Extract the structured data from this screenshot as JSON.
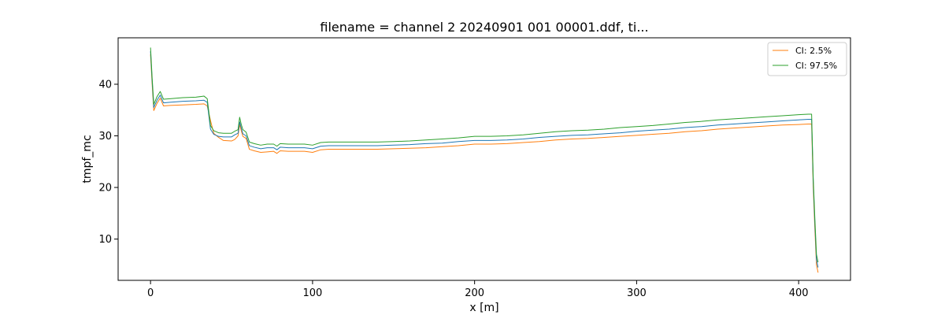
{
  "chart_data": {
    "type": "line",
    "title": "filename = channel 2 20240901 001 00001.ddf, ti...",
    "xlabel": "x [m]",
    "ylabel": "tmpf_mc",
    "xlim": [
      -20,
      432
    ],
    "ylim": [
      2,
      49
    ],
    "xticks": [
      0,
      100,
      200,
      300,
      400
    ],
    "yticks": [
      10,
      20,
      30,
      40
    ],
    "grid": false,
    "legend_position": "top-right",
    "series": [
      {
        "key": "ci_2_5",
        "name": "CI: 2.5%",
        "color": "#ff7f0e",
        "in_legend": true,
        "points": [
          [
            0,
            45.8
          ],
          [
            1,
            40
          ],
          [
            2,
            34.9
          ],
          [
            4,
            36.3
          ],
          [
            6,
            37.3
          ],
          [
            8,
            35.8
          ],
          [
            12,
            35.9
          ],
          [
            20,
            36
          ],
          [
            28,
            36.1
          ],
          [
            33,
            36.2
          ],
          [
            35,
            35.8
          ],
          [
            37,
            33
          ],
          [
            39,
            30.5
          ],
          [
            42,
            29.7
          ],
          [
            45,
            29.1
          ],
          [
            50,
            29
          ],
          [
            52,
            29.3
          ],
          [
            54,
            30
          ],
          [
            55,
            32.2
          ],
          [
            56,
            31
          ],
          [
            57,
            29.9
          ],
          [
            59,
            29.5
          ],
          [
            61,
            27.4
          ],
          [
            64,
            27.1
          ],
          [
            68,
            26.8
          ],
          [
            72,
            26.9
          ],
          [
            76,
            27
          ],
          [
            78,
            26.6
          ],
          [
            80,
            27.1
          ],
          [
            85,
            27
          ],
          [
            90,
            27
          ],
          [
            95,
            27
          ],
          [
            100,
            26.8
          ],
          [
            105,
            27.3
          ],
          [
            110,
            27.4
          ],
          [
            120,
            27.4
          ],
          [
            130,
            27.4
          ],
          [
            140,
            27.4
          ],
          [
            150,
            27.5
          ],
          [
            160,
            27.6
          ],
          [
            170,
            27.7
          ],
          [
            180,
            27.9
          ],
          [
            190,
            28.1
          ],
          [
            200,
            28.4
          ],
          [
            210,
            28.4
          ],
          [
            220,
            28.5
          ],
          [
            230,
            28.7
          ],
          [
            240,
            28.9
          ],
          [
            250,
            29.2
          ],
          [
            260,
            29.4
          ],
          [
            270,
            29.5
          ],
          [
            280,
            29.7
          ],
          [
            290,
            29.9
          ],
          [
            300,
            30.1
          ],
          [
            310,
            30.3
          ],
          [
            320,
            30.5
          ],
          [
            330,
            30.8
          ],
          [
            340,
            31
          ],
          [
            350,
            31.3
          ],
          [
            360,
            31.5
          ],
          [
            370,
            31.7
          ],
          [
            380,
            31.9
          ],
          [
            390,
            32.1
          ],
          [
            400,
            32.2
          ],
          [
            406,
            32.3
          ],
          [
            408,
            32.3
          ],
          [
            409,
            20
          ],
          [
            410,
            12
          ],
          [
            411,
            5
          ],
          [
            412,
            3.5
          ]
        ]
      },
      {
        "key": "mean",
        "name": "",
        "color": "#1f77b4",
        "in_legend": false,
        "points": [
          [
            0,
            46.4
          ],
          [
            1,
            40.6
          ],
          [
            2,
            35.5
          ],
          [
            4,
            36.9
          ],
          [
            6,
            37.9
          ],
          [
            8,
            36.4
          ],
          [
            12,
            36.5
          ],
          [
            20,
            36.7
          ],
          [
            28,
            36.8
          ],
          [
            33,
            36.9
          ],
          [
            35,
            36.5
          ],
          [
            37,
            31.3
          ],
          [
            39,
            30.3
          ],
          [
            42,
            29.9
          ],
          [
            45,
            29.8
          ],
          [
            50,
            29.8
          ],
          [
            52,
            30.2
          ],
          [
            54,
            30.5
          ],
          [
            55,
            32.7
          ],
          [
            56,
            31.5
          ],
          [
            57,
            30.4
          ],
          [
            59,
            30
          ],
          [
            61,
            28.1
          ],
          [
            64,
            27.8
          ],
          [
            68,
            27.5
          ],
          [
            72,
            27.7
          ],
          [
            76,
            27.7
          ],
          [
            78,
            27.3
          ],
          [
            80,
            27.8
          ],
          [
            85,
            27.7
          ],
          [
            90,
            27.7
          ],
          [
            95,
            27.7
          ],
          [
            100,
            27.5
          ],
          [
            105,
            28
          ],
          [
            110,
            28.1
          ],
          [
            120,
            28.1
          ],
          [
            130,
            28.1
          ],
          [
            140,
            28.1
          ],
          [
            150,
            28.2
          ],
          [
            160,
            28.3
          ],
          [
            170,
            28.5
          ],
          [
            180,
            28.6
          ],
          [
            190,
            28.9
          ],
          [
            200,
            29.1
          ],
          [
            210,
            29.1
          ],
          [
            220,
            29.2
          ],
          [
            230,
            29.4
          ],
          [
            240,
            29.7
          ],
          [
            250,
            29.9
          ],
          [
            260,
            30.1
          ],
          [
            270,
            30.2
          ],
          [
            280,
            30.4
          ],
          [
            290,
            30.6
          ],
          [
            300,
            30.9
          ],
          [
            310,
            31.1
          ],
          [
            320,
            31.3
          ],
          [
            330,
            31.6
          ],
          [
            340,
            31.8
          ],
          [
            350,
            32.1
          ],
          [
            360,
            32.3
          ],
          [
            370,
            32.5
          ],
          [
            380,
            32.7
          ],
          [
            390,
            32.9
          ],
          [
            400,
            33.1
          ],
          [
            406,
            33.2
          ],
          [
            408,
            33.2
          ],
          [
            409,
            21
          ],
          [
            410,
            13
          ],
          [
            411,
            6
          ],
          [
            412,
            4.5
          ]
        ]
      },
      {
        "key": "ci_97_5",
        "name": "CI: 97.5%",
        "color": "#2ca02c",
        "in_legend": true,
        "points": [
          [
            0,
            47.1
          ],
          [
            1,
            41.2
          ],
          [
            2,
            36.1
          ],
          [
            4,
            37.6
          ],
          [
            6,
            38.6
          ],
          [
            8,
            37.1
          ],
          [
            12,
            37.2
          ],
          [
            20,
            37.4
          ],
          [
            28,
            37.5
          ],
          [
            33,
            37.7
          ],
          [
            35,
            37.2
          ],
          [
            37,
            32
          ],
          [
            39,
            31
          ],
          [
            42,
            30.6
          ],
          [
            45,
            30.5
          ],
          [
            50,
            30.5
          ],
          [
            52,
            30.9
          ],
          [
            54,
            31.2
          ],
          [
            55,
            33.6
          ],
          [
            56,
            32.2
          ],
          [
            57,
            31.2
          ],
          [
            59,
            30.7
          ],
          [
            61,
            28.8
          ],
          [
            64,
            28.5
          ],
          [
            68,
            28.2
          ],
          [
            72,
            28.4
          ],
          [
            76,
            28.4
          ],
          [
            78,
            28
          ],
          [
            80,
            28.5
          ],
          [
            85,
            28.4
          ],
          [
            90,
            28.4
          ],
          [
            95,
            28.4
          ],
          [
            100,
            28.2
          ],
          [
            105,
            28.7
          ],
          [
            110,
            28.8
          ],
          [
            120,
            28.8
          ],
          [
            130,
            28.8
          ],
          [
            140,
            28.8
          ],
          [
            150,
            28.9
          ],
          [
            160,
            29
          ],
          [
            170,
            29.2
          ],
          [
            180,
            29.4
          ],
          [
            190,
            29.6
          ],
          [
            200,
            29.9
          ],
          [
            210,
            29.9
          ],
          [
            220,
            30
          ],
          [
            230,
            30.2
          ],
          [
            240,
            30.5
          ],
          [
            250,
            30.8
          ],
          [
            260,
            31
          ],
          [
            270,
            31.1
          ],
          [
            280,
            31.3
          ],
          [
            290,
            31.6
          ],
          [
            300,
            31.8
          ],
          [
            310,
            32
          ],
          [
            320,
            32.3
          ],
          [
            330,
            32.6
          ],
          [
            340,
            32.8
          ],
          [
            350,
            33.1
          ],
          [
            360,
            33.3
          ],
          [
            370,
            33.5
          ],
          [
            380,
            33.7
          ],
          [
            390,
            33.9
          ],
          [
            400,
            34.1
          ],
          [
            406,
            34.2
          ],
          [
            408,
            34.2
          ],
          [
            409,
            21.8
          ],
          [
            410,
            14
          ],
          [
            411,
            7
          ],
          [
            412,
            5.5
          ]
        ]
      }
    ]
  }
}
